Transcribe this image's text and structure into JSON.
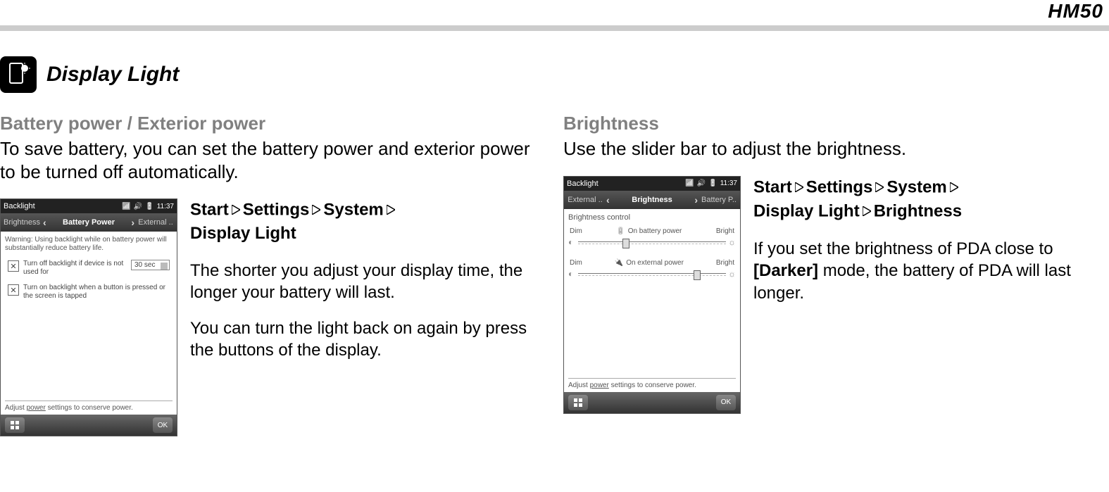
{
  "header": {
    "model": "HM50"
  },
  "section": {
    "title": "Display Light"
  },
  "left": {
    "subheading": "Battery power / Exterior power",
    "lead": "To save battery, you can set the battery power and exterior power to be turned off automatically.",
    "path": [
      "Start",
      "Settings",
      "System",
      "Display Light"
    ],
    "para1": "The shorter you adjust your display time, the longer your battery will last.",
    "para2": "You can turn the light back on again by press the buttons of the display.",
    "phone": {
      "title": "Backlight",
      "clock": "11:37",
      "tab_left": "Brightness",
      "tab_mid": "Battery Power",
      "tab_right": "External ..",
      "warning": "Warning: Using backlight while on battery power will substantially reduce battery life.",
      "opt1_label": "Turn off backlight if device is not used for",
      "opt1_value": "30 sec",
      "opt2_label": "Turn on backlight when a button is pressed or the screen is tapped",
      "footer_pre": "Adjust ",
      "footer_link": "power",
      "footer_post": " settings to conserve power.",
      "ok": "OK"
    }
  },
  "right": {
    "subheading": "Brightness",
    "lead": "Use the slider bar to adjust the brightness.",
    "path": [
      "Start",
      "Settings",
      "System",
      "Display Light",
      "Brightness"
    ],
    "para1a": "If you set the brightness of PDA close to ",
    "para1b": "[Darker]",
    "para1c": " mode, the battery of PDA will last longer.",
    "phone": {
      "title": "Backlight",
      "clock": "11:37",
      "tab_left": "External ..",
      "tab_mid": "Brightness",
      "tab_right": "Battery P..",
      "control_label": "Brightness control",
      "dim": "Dim",
      "bright": "Bright",
      "row1_label": "On battery power",
      "row2_label": "On external power",
      "footer_pre": "Adjust ",
      "footer_link": "power",
      "footer_post": " settings to conserve power.",
      "ok": "OK",
      "slider1_pos_pct": 30,
      "slider2_pos_pct": 78
    }
  }
}
